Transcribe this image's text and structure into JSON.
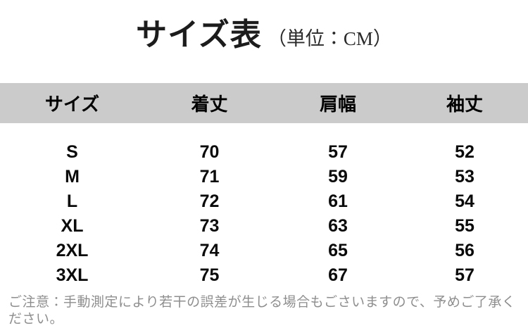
{
  "title": {
    "main": "サイズ表",
    "unit_label": "（単位：CM）"
  },
  "chart_data": {
    "type": "table",
    "title": "サイズ表（単位：CM）",
    "unit": "CM",
    "columns": [
      "サイズ",
      "着丈",
      "肩幅",
      "袖丈"
    ],
    "rows": [
      [
        "S",
        "70",
        "57",
        "52"
      ],
      [
        "M",
        "71",
        "59",
        "53"
      ],
      [
        "L",
        "72",
        "61",
        "54"
      ],
      [
        "XL",
        "73",
        "63",
        "55"
      ],
      [
        "2XL",
        "74",
        "65",
        "56"
      ],
      [
        "3XL",
        "75",
        "67",
        "57"
      ]
    ]
  },
  "footer_note": "ご注意：手動測定により若干の誤差が生じる場合もごさいますので、予めご了承ください。",
  "colors": {
    "background": "#ffffff",
    "header_band_bg": "#cbcbcb",
    "heading_text": "#1c1c1c",
    "cell_text": "#0a0a0a",
    "note_text": "#8e8e8e"
  }
}
